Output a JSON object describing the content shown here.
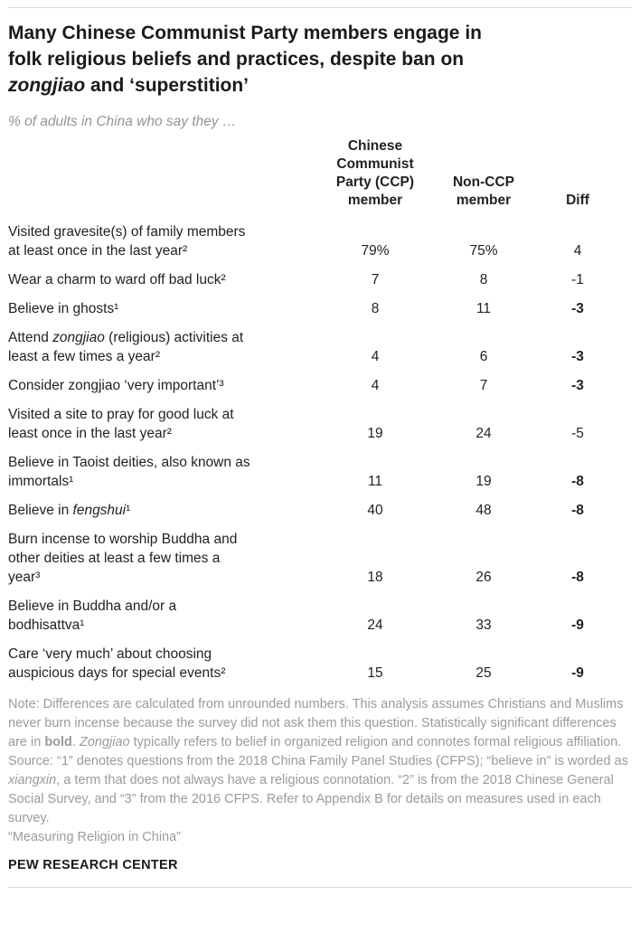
{
  "colors": {
    "background": "#ffffff",
    "title_text": "#1a1a1a",
    "body_text": "#222222",
    "subtitle_text": "#949494",
    "note_text": "#9b9b9b",
    "rule": "#d8d8d8"
  },
  "header": {
    "title_parts": [
      {
        "t": "Many Chinese Communist Party members engage in\nfolk religious beliefs and practices, despite ban on\n"
      },
      {
        "t": "zongjiao",
        "i": true
      },
      {
        "t": " and ‘superstition’"
      }
    ],
    "subtitle": "% of adults in China who say they …"
  },
  "chart_data": {
    "type": "table",
    "title": "Many Chinese Communist Party members engage in folk religious beliefs and practices, despite ban on zongjiao and ‘superstition’",
    "subtitle": "% of adults in China who say they …",
    "columns": [
      "Chinese\nCommunist\nParty (CCP)\nmember",
      "Non-CCP\nmember",
      "Diff"
    ],
    "rows": [
      {
        "label_parts": [
          {
            "t": "Visited gravesite(s) of family members\nat least once in the last year²"
          }
        ],
        "ccp": "79%",
        "non_ccp": "75%",
        "diff": "4",
        "diff_bold": false
      },
      {
        "label_parts": [
          {
            "t": "Wear a charm to ward off bad luck²"
          }
        ],
        "ccp": "7",
        "non_ccp": "8",
        "diff": "-1",
        "diff_bold": false
      },
      {
        "label_parts": [
          {
            "t": "Believe in ghosts¹"
          }
        ],
        "ccp": "8",
        "non_ccp": "11",
        "diff": "-3",
        "diff_bold": true
      },
      {
        "label_parts": [
          {
            "t": "Attend "
          },
          {
            "t": "zongjiao",
            "i": true
          },
          {
            "t": " (religious) activities at\nleast a few times a year²"
          }
        ],
        "ccp": "4",
        "non_ccp": "6",
        "diff": "-3",
        "diff_bold": true
      },
      {
        "label_parts": [
          {
            "t": "Consider zongjiao ‘very important’³"
          }
        ],
        "ccp": "4",
        "non_ccp": "7",
        "diff": "-3",
        "diff_bold": true
      },
      {
        "label_parts": [
          {
            "t": "Visited a site to pray for good luck at\nleast once in the last year²"
          }
        ],
        "ccp": "19",
        "non_ccp": "24",
        "diff": "-5",
        "diff_bold": false
      },
      {
        "label_parts": [
          {
            "t": "Believe in Taoist deities, also known as\nimmortals¹"
          }
        ],
        "ccp": "11",
        "non_ccp": "19",
        "diff": "-8",
        "diff_bold": true
      },
      {
        "label_parts": [
          {
            "t": "Believe in "
          },
          {
            "t": "fengshui",
            "i": true
          },
          {
            "t": "¹"
          }
        ],
        "ccp": "40",
        "non_ccp": "48",
        "diff": "-8",
        "diff_bold": true
      },
      {
        "label_parts": [
          {
            "t": "Burn incense to worship Buddha and\nother deities at least a few times a\nyear³"
          }
        ],
        "ccp": "18",
        "non_ccp": "26",
        "diff": "-8",
        "diff_bold": true
      },
      {
        "label_parts": [
          {
            "t": "Believe in Buddha and/or a\nbodhisattva¹"
          }
        ],
        "ccp": "24",
        "non_ccp": "33",
        "diff": "-9",
        "diff_bold": true
      },
      {
        "label_parts": [
          {
            "t": "Care ‘very much’ about choosing\nauspicious days for special events²"
          }
        ],
        "ccp": "15",
        "non_ccp": "25",
        "diff": "-9",
        "diff_bold": true
      }
    ]
  },
  "footer": {
    "note_parts": [
      {
        "t": "Note: Differences are calculated from unrounded numbers. This analysis assumes Christians and Muslims never burn incense because the survey did not ask them this question. Statistically significant differences are in "
      },
      {
        "t": "bold",
        "b": true
      },
      {
        "t": ". "
      },
      {
        "t": "Zongjiao",
        "i": true
      },
      {
        "t": " typically refers to belief in organized religion and connotes formal religious affiliation."
      }
    ],
    "source_parts": [
      {
        "t": "Source: “1” denotes questions from the 2018 China Family Panel Studies (CFPS); “believe in” is worded as "
      },
      {
        "t": "xiangxin",
        "i": true
      },
      {
        "t": ", a term that does not always have a religious connotation. “2” is from the 2018 Chinese General Social Survey, and “3” from the 2016 CFPS. Refer to Appendix B for details on measures used in each survey."
      }
    ],
    "credit": "“Measuring Religion in China”",
    "brand": "PEW RESEARCH CENTER"
  }
}
